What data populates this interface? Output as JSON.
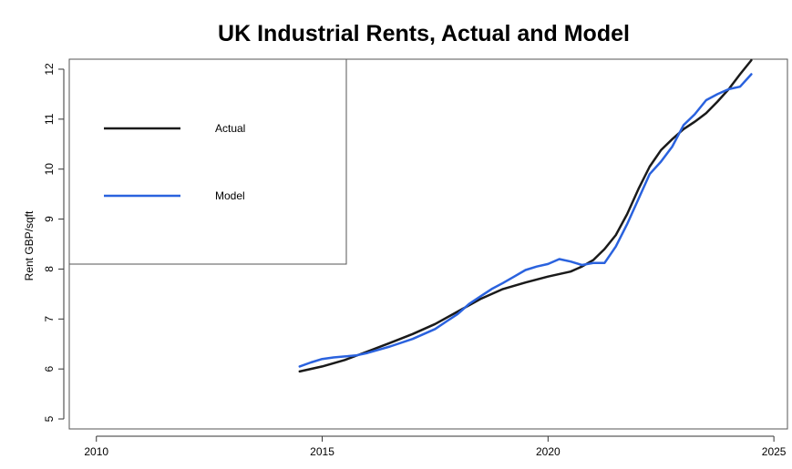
{
  "chart_data": {
    "type": "line",
    "title": "UK Industrial Rents, Actual and Model",
    "xlabel": "",
    "ylabel": "Rent GBP/sqft",
    "xlim": [
      2009.4,
      2025.3
    ],
    "ylim": [
      4.8,
      12.2
    ],
    "x_ticks": [
      2010,
      2015,
      2020,
      2025
    ],
    "y_ticks": [
      5,
      6,
      7,
      8,
      9,
      10,
      11,
      12
    ],
    "grid": false,
    "legend_position": "top-left",
    "series": [
      {
        "name": "Actual",
        "color": "#1a1a1a",
        "x": [
          2014.5,
          2015.0,
          2015.5,
          2016.0,
          2016.5,
          2017.0,
          2017.5,
          2018.0,
          2018.5,
          2019.0,
          2019.5,
          2020.0,
          2020.5,
          2020.75,
          2021.0,
          2021.25,
          2021.5,
          2021.75,
          2022.0,
          2022.25,
          2022.5,
          2022.75,
          2023.0,
          2023.25,
          2023.5,
          2023.75,
          2024.0,
          2024.25,
          2024.5
        ],
        "y": [
          5.95,
          6.05,
          6.18,
          6.35,
          6.52,
          6.7,
          6.9,
          7.15,
          7.4,
          7.6,
          7.73,
          7.85,
          7.95,
          8.05,
          8.18,
          8.4,
          8.68,
          9.1,
          9.6,
          10.05,
          10.38,
          10.6,
          10.8,
          10.95,
          11.12,
          11.35,
          11.6,
          11.9,
          12.18
        ]
      },
      {
        "name": "Model",
        "color": "#2a62de",
        "x": [
          2014.5,
          2014.75,
          2015.0,
          2015.25,
          2015.5,
          2015.75,
          2016.0,
          2016.5,
          2017.0,
          2017.5,
          2017.75,
          2018.0,
          2018.25,
          2018.5,
          2018.75,
          2019.0,
          2019.25,
          2019.5,
          2019.75,
          2020.0,
          2020.25,
          2020.5,
          2020.75,
          2021.0,
          2021.25,
          2021.5,
          2021.75,
          2022.0,
          2022.25,
          2022.5,
          2022.75,
          2023.0,
          2023.25,
          2023.5,
          2023.75,
          2024.0,
          2024.25,
          2024.5
        ],
        "y": [
          6.05,
          6.13,
          6.2,
          6.23,
          6.25,
          6.27,
          6.32,
          6.45,
          6.6,
          6.8,
          6.95,
          7.1,
          7.3,
          7.45,
          7.6,
          7.72,
          7.85,
          7.98,
          8.05,
          8.1,
          8.2,
          8.15,
          8.08,
          8.12,
          8.12,
          8.45,
          8.9,
          9.4,
          9.9,
          10.15,
          10.45,
          10.88,
          11.1,
          11.38,
          11.5,
          11.6,
          11.65,
          11.9
        ]
      }
    ]
  }
}
